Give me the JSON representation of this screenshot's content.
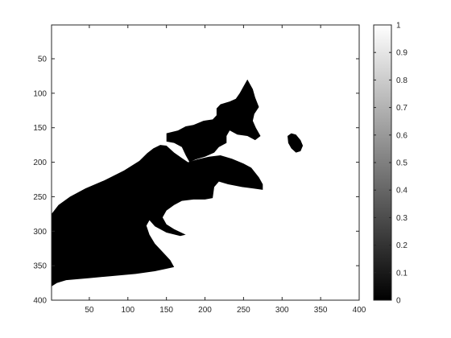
{
  "chart_data": {
    "type": "heatmap",
    "image_size": [
      400,
      400
    ],
    "x": {
      "range": [
        1,
        400
      ],
      "ticks": [
        50,
        100,
        150,
        200,
        250,
        300,
        350,
        400
      ]
    },
    "y": {
      "range": [
        1,
        400
      ],
      "direction": "top-down",
      "ticks": [
        50,
        100,
        150,
        200,
        250,
        300,
        350,
        400
      ]
    },
    "colorbar": {
      "range": [
        0,
        1
      ],
      "ticks": [
        0,
        0.1,
        0.2,
        0.3,
        0.4,
        0.5,
        0.6,
        0.7,
        0.8,
        0.9,
        1
      ],
      "colormap": "gray",
      "low_color": "#000000",
      "high_color": "#ffffff"
    },
    "background_value": 1,
    "foreground_value": 0,
    "binary_mask_regions_value_0": [
      {
        "name": "left-body",
        "outline": [
          [
            1,
            275
          ],
          [
            10,
            262
          ],
          [
            25,
            250
          ],
          [
            45,
            238
          ],
          [
            70,
            226
          ],
          [
            95,
            212
          ],
          [
            115,
            198
          ],
          [
            125,
            187
          ],
          [
            133,
            180
          ],
          [
            142,
            175
          ],
          [
            150,
            176
          ],
          [
            160,
            186
          ],
          [
            170,
            194
          ],
          [
            178,
            200
          ],
          [
            190,
            196
          ],
          [
            205,
            192
          ],
          [
            220,
            190
          ],
          [
            235,
            195
          ],
          [
            250,
            202
          ],
          [
            260,
            208
          ],
          [
            270,
            222
          ],
          [
            275,
            232
          ],
          [
            275,
            240
          ],
          [
            262,
            238
          ],
          [
            248,
            236
          ],
          [
            230,
            232
          ],
          [
            218,
            228
          ],
          [
            212,
            236
          ],
          [
            210,
            252
          ],
          [
            200,
            254
          ],
          [
            185,
            254
          ],
          [
            170,
            256
          ],
          [
            160,
            262
          ],
          [
            150,
            270
          ],
          [
            145,
            280
          ],
          [
            150,
            290
          ],
          [
            160,
            297
          ],
          [
            175,
            305
          ],
          [
            168,
            307
          ],
          [
            150,
            302
          ],
          [
            135,
            293
          ],
          [
            128,
            284
          ],
          [
            124,
            292
          ],
          [
            128,
            305
          ],
          [
            135,
            318
          ],
          [
            145,
            330
          ],
          [
            155,
            342
          ],
          [
            160,
            352
          ],
          [
            148,
            355
          ],
          [
            135,
            358
          ],
          [
            110,
            362
          ],
          [
            80,
            365
          ],
          [
            50,
            368
          ],
          [
            20,
            371
          ],
          [
            8,
            375
          ],
          [
            1,
            380
          ]
        ]
      },
      {
        "name": "upper-mass",
        "outline": [
          [
            150,
            158
          ],
          [
            165,
            154
          ],
          [
            175,
            148
          ],
          [
            185,
            146
          ],
          [
            198,
            140
          ],
          [
            210,
            138
          ],
          [
            215,
            132
          ],
          [
            215,
            122
          ],
          [
            220,
            116
          ],
          [
            232,
            112
          ],
          [
            240,
            108
          ],
          [
            245,
            100
          ],
          [
            250,
            90
          ],
          [
            255,
            80
          ],
          [
            262,
            94
          ],
          [
            265,
            106
          ],
          [
            270,
            120
          ],
          [
            264,
            130
          ],
          [
            262,
            140
          ],
          [
            266,
            150
          ],
          [
            272,
            162
          ],
          [
            265,
            168
          ],
          [
            255,
            162
          ],
          [
            242,
            160
          ],
          [
            232,
            154
          ],
          [
            228,
            162
          ],
          [
            228,
            172
          ],
          [
            218,
            178
          ],
          [
            212,
            186
          ],
          [
            200,
            192
          ],
          [
            188,
            196
          ],
          [
            180,
            200
          ],
          [
            175,
            190
          ],
          [
            170,
            178
          ],
          [
            160,
            172
          ],
          [
            150,
            170
          ]
        ]
      },
      {
        "name": "eye-ring",
        "outline": [
          [
            307,
            162
          ],
          [
            312,
            158
          ],
          [
            318,
            160
          ],
          [
            324,
            168
          ],
          [
            327,
            176
          ],
          [
            324,
            184
          ],
          [
            318,
            186
          ],
          [
            312,
            180
          ],
          [
            308,
            172
          ]
        ]
      }
    ]
  }
}
